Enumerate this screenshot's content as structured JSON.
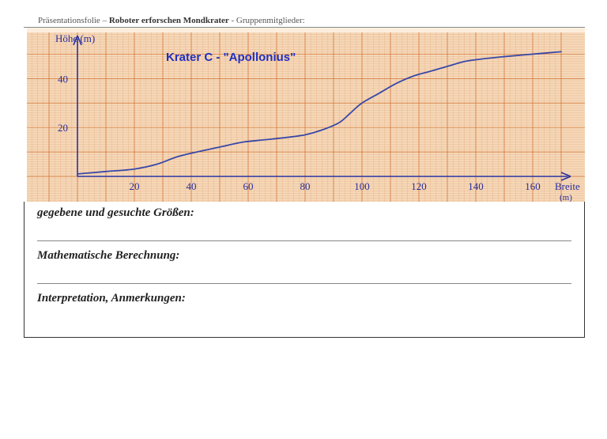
{
  "header": {
    "prefix": "Präsentationsfolie – ",
    "bold": "Roboter erforschen Mondkrater",
    "suffix": " - Gruppenmitglieder:"
  },
  "chart": {
    "type": "line",
    "title": "Krater C - \"Apollonius\"",
    "title_color": "#2030c0",
    "title_fontsize": 15,
    "paper_bg": "#f5d8b8",
    "grid_minor": "#e8b088",
    "grid_major": "#d07030",
    "line_color": "#3848a8",
    "ink_color": "#2830a0",
    "x_label": "Breite",
    "x_unit": "(m)",
    "y_label": "Höhe (m)",
    "xlim": [
      0,
      170
    ],
    "ylim": [
      0,
      55
    ],
    "x_ticks": [
      20,
      40,
      60,
      80,
      100,
      120,
      140,
      160
    ],
    "y_ticks": [
      20,
      40
    ],
    "data": [
      [
        0,
        1
      ],
      [
        10,
        2
      ],
      [
        20,
        3
      ],
      [
        28,
        5
      ],
      [
        35,
        8
      ],
      [
        42,
        10
      ],
      [
        50,
        12
      ],
      [
        58,
        14
      ],
      [
        66,
        15
      ],
      [
        74,
        16
      ],
      [
        80,
        17
      ],
      [
        86,
        19
      ],
      [
        92,
        22
      ],
      [
        96,
        26
      ],
      [
        100,
        30
      ],
      [
        106,
        34
      ],
      [
        112,
        38
      ],
      [
        118,
        41
      ],
      [
        124,
        43
      ],
      [
        130,
        45
      ],
      [
        136,
        47
      ],
      [
        142,
        48
      ],
      [
        150,
        49
      ],
      [
        160,
        50
      ],
      [
        170,
        51
      ]
    ]
  },
  "sections": {
    "s1": "gegebene und gesuchte Größen:",
    "s2": "Mathematische Berechnung:",
    "s3": "Interpretation, Anmerkungen:"
  }
}
